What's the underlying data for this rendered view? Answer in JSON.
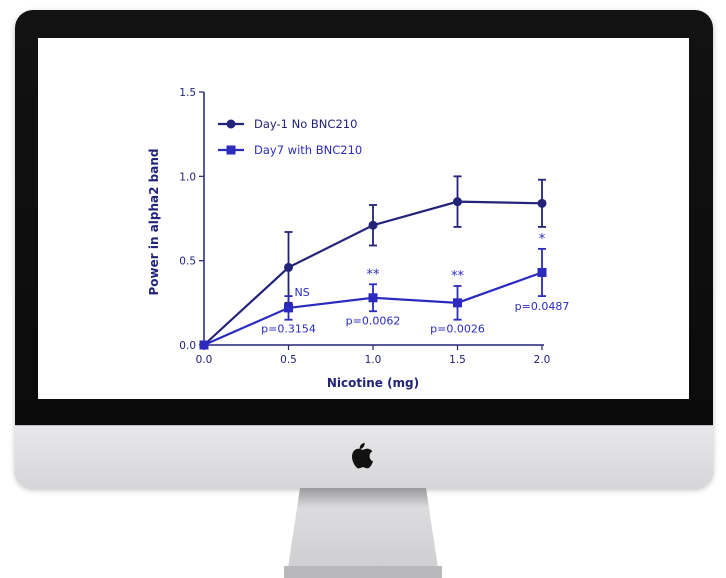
{
  "chart_data": {
    "type": "line",
    "xlabel": "Nicotine (mg)",
    "ylabel": "Power in alpha2 band",
    "xlim": [
      0.0,
      2.0
    ],
    "ylim": [
      0.0,
      1.5
    ],
    "x_ticks": [
      "0.0",
      "0.5",
      "1.0",
      "1.5",
      "2.0"
    ],
    "y_ticks": [
      "0.0",
      "0.5",
      "1.0",
      "1.5"
    ],
    "legend_position": "top-left",
    "series": [
      {
        "name": "Day-1 No BNC210",
        "marker": "circle",
        "color": "#23237a",
        "x": [
          0.0,
          0.5,
          1.0,
          1.5,
          2.0
        ],
        "y": [
          0.0,
          0.46,
          0.71,
          0.85,
          0.84
        ],
        "err": [
          0.0,
          0.21,
          0.12,
          0.15,
          0.14
        ]
      },
      {
        "name": "Day7 with BNC210",
        "marker": "square",
        "color": "#2b2bbf",
        "x": [
          0.0,
          0.5,
          1.0,
          1.5,
          2.0
        ],
        "y": [
          0.0,
          0.22,
          0.28,
          0.25,
          0.43
        ],
        "err": [
          0.0,
          0.07,
          0.08,
          0.1,
          0.14
        ]
      }
    ],
    "annotations": [
      {
        "x": 0.5,
        "stars": "NS",
        "p": "p=0.3154"
      },
      {
        "x": 1.0,
        "stars": "**",
        "p": "p=0.0062"
      },
      {
        "x": 1.5,
        "stars": "**",
        "p": "p=0.0026"
      },
      {
        "x": 2.0,
        "stars": "*",
        "p": "p=0.0487"
      }
    ]
  },
  "colors": {
    "axis": "#23237a",
    "annotation": "#2b2bbf",
    "bezel": "#0f0f0f",
    "chin": "#dcdcde"
  },
  "icon": "apple-logo-icon"
}
